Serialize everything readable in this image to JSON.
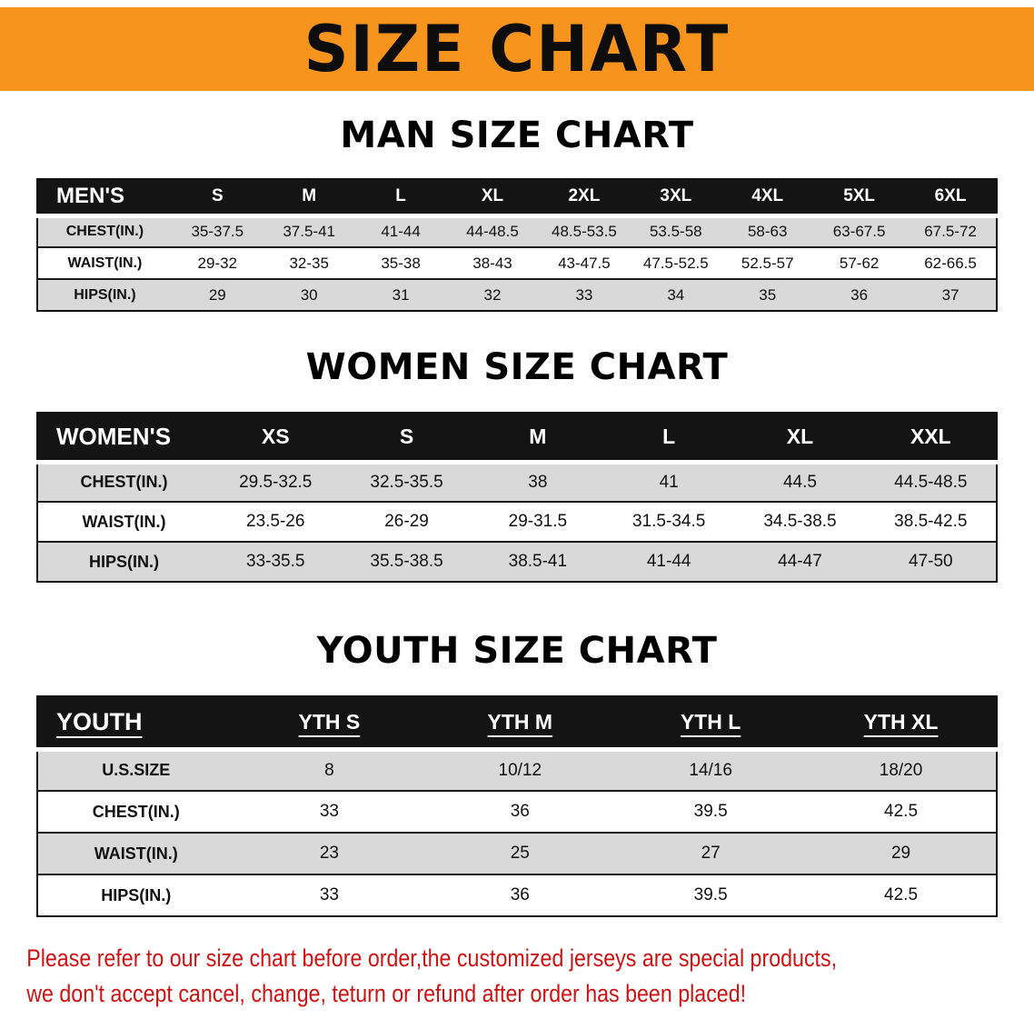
{
  "banner": {
    "title": "SIZE CHART"
  },
  "men": {
    "heading": "MAN SIZE CHART",
    "table": {
      "header": [
        "MEN'S",
        "S",
        "M",
        "L",
        "XL",
        "2XL",
        "3XL",
        "4XL",
        "5XL",
        "6XL"
      ],
      "rows": [
        [
          "CHEST(IN.)",
          "35-37.5",
          "37.5-41",
          "41-44",
          "44-48.5",
          "48.5-53.5",
          "53.5-58",
          "58-63",
          "63-67.5",
          "67.5-72"
        ],
        [
          "WAIST(IN.)",
          "29-32",
          "32-35",
          "35-38",
          "38-43",
          "43-47.5",
          "47.5-52.5",
          "52.5-57",
          "57-62",
          "62-66.5"
        ],
        [
          "HIPS(IN.)",
          "29",
          "30",
          "31",
          "32",
          "33",
          "34",
          "35",
          "36",
          "37"
        ]
      ]
    }
  },
  "women": {
    "heading": "WOMEN SIZE CHART",
    "table": {
      "header": [
        "WOMEN'S",
        "XS",
        "S",
        "M",
        "L",
        "XL",
        "XXL"
      ],
      "rows": [
        [
          "CHEST(IN.)",
          "29.5-32.5",
          "32.5-35.5",
          "38",
          "41",
          "44.5",
          "44.5-48.5"
        ],
        [
          "WAIST(IN.)",
          "23.5-26",
          "26-29",
          "29-31.5",
          "31.5-34.5",
          "34.5-38.5",
          "38.5-42.5"
        ],
        [
          "HIPS(IN.)",
          "33-35.5",
          "35.5-38.5",
          "38.5-41",
          "41-44",
          "44-47",
          "47-50"
        ]
      ]
    }
  },
  "youth": {
    "heading": "YOUTH SIZE CHART",
    "table": {
      "header": [
        "YOUTH",
        "YTH S",
        "YTH M",
        "YTH L",
        "YTH XL"
      ],
      "rows": [
        [
          "U.S.SIZE",
          "8",
          "10/12",
          "14/16",
          "18/20"
        ],
        [
          "CHEST(IN.)",
          "33",
          "36",
          "39.5",
          "42.5"
        ],
        [
          "WAIST(IN.)",
          "23",
          "25",
          "27",
          "29"
        ],
        [
          "HIPS(IN.)",
          "33",
          "36",
          "39.5",
          "42.5"
        ]
      ]
    }
  },
  "disclaimer": {
    "line1": "Please refer to our size chart before order,the customized jerseys are special products,",
    "line2": "we don't accept cancel, change, teturn or refund after order has been placed!"
  },
  "colors": {
    "banner_bg": "#F7941E",
    "table_header_bg": "#141414",
    "row_alt_bg": "#d9d9d9",
    "disclaimer_text": "#cc1212"
  }
}
